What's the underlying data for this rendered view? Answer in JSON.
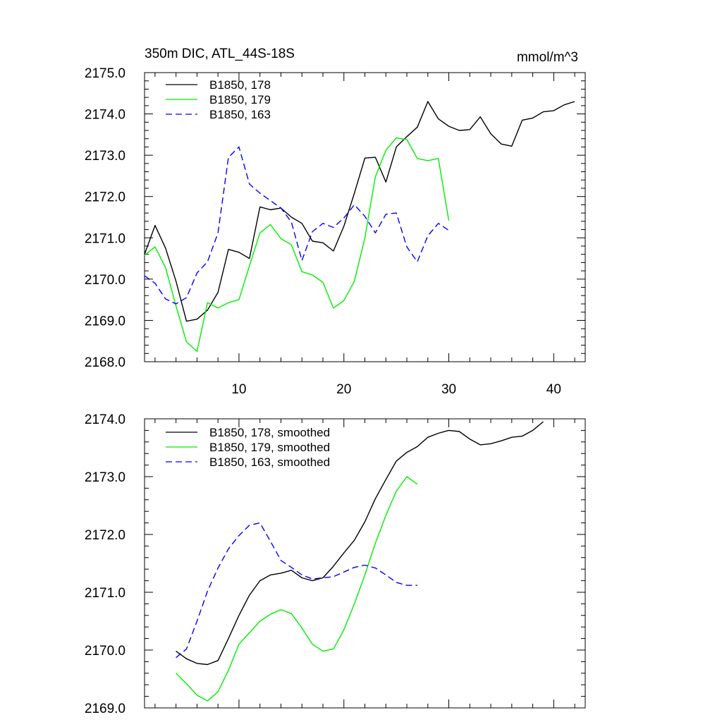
{
  "chart_data": [
    {
      "type": "line",
      "title_left": "350m DIC, ATL_44S-18S",
      "title_right": "mmol/m^3",
      "xlim": [
        1,
        43
      ],
      "ylim": [
        2168.0,
        2175.0
      ],
      "x_major_ticks": [
        10,
        20,
        30,
        40
      ],
      "x_tick_labels": [
        "10",
        "20",
        "30",
        "40"
      ],
      "y_major_ticks": [
        2168.0,
        2169.0,
        2170.0,
        2171.0,
        2172.0,
        2173.0,
        2174.0,
        2175.0
      ],
      "y_tick_labels": [
        "2168.0",
        "2169.0",
        "2170.0",
        "2171.0",
        "2172.0",
        "2173.0",
        "2174.0",
        "2175.0"
      ],
      "legend_position": "top-left",
      "series": [
        {
          "name": "B1850, 178",
          "color": "#000000",
          "dash": "solid",
          "x": [
            1,
            2,
            3,
            4,
            5,
            6,
            7,
            8,
            9,
            10,
            11,
            12,
            13,
            14,
            15,
            16,
            17,
            18,
            19,
            20,
            21,
            22,
            23,
            24,
            25,
            26,
            27,
            28,
            29,
            30,
            31,
            32,
            33,
            34,
            35,
            36,
            37,
            38,
            39,
            40,
            41,
            42
          ],
          "values": [
            2170.6,
            2171.3,
            2170.75,
            2169.95,
            2168.98,
            2169.03,
            2169.25,
            2169.68,
            2170.72,
            2170.65,
            2170.5,
            2171.75,
            2171.68,
            2171.72,
            2171.5,
            2171.35,
            2170.92,
            2170.88,
            2170.68,
            2171.28,
            2172.08,
            2172.93,
            2172.95,
            2172.35,
            2173.2,
            2173.45,
            2173.68,
            2174.3,
            2173.88,
            2173.7,
            2173.6,
            2173.62,
            2173.93,
            2173.52,
            2173.27,
            2173.22,
            2173.85,
            2173.9,
            2174.05,
            2174.08,
            2174.22,
            2174.3
          ]
        },
        {
          "name": "B1850, 179",
          "color": "#00ee00",
          "dash": "solid",
          "x": [
            1,
            2,
            3,
            4,
            5,
            6,
            7,
            8,
            9,
            10,
            11,
            12,
            13,
            14,
            15,
            16,
            17,
            18,
            19,
            20,
            21,
            22,
            23,
            24,
            25,
            26,
            27,
            28,
            29,
            30
          ],
          "values": [
            2170.58,
            2170.78,
            2170.28,
            2169.35,
            2168.48,
            2168.25,
            2169.43,
            2169.3,
            2169.43,
            2169.5,
            2170.32,
            2171.12,
            2171.32,
            2170.98,
            2170.83,
            2170.18,
            2170.1,
            2169.92,
            2169.3,
            2169.48,
            2169.95,
            2171.0,
            2172.48,
            2173.12,
            2173.42,
            2173.38,
            2172.92,
            2172.87,
            2172.92,
            2171.42
          ]
        },
        {
          "name": "B1850, 163",
          "color": "#0000ff",
          "dash": "dashed",
          "x": [
            1,
            2,
            3,
            4,
            5,
            6,
            7,
            8,
            9,
            10,
            11,
            12,
            13,
            14,
            15,
            16,
            17,
            18,
            19,
            20,
            21,
            22,
            23,
            24,
            25,
            26,
            27,
            28,
            29,
            30
          ],
          "values": [
            2170.08,
            2169.9,
            2169.52,
            2169.4,
            2169.55,
            2170.15,
            2170.42,
            2171.12,
            2172.95,
            2173.2,
            2172.3,
            2172.08,
            2171.9,
            2171.72,
            2171.38,
            2170.45,
            2171.15,
            2171.35,
            2171.25,
            2171.48,
            2171.8,
            2171.52,
            2171.12,
            2171.57,
            2171.6,
            2170.78,
            2170.42,
            2171.05,
            2171.35,
            2171.18
          ]
        }
      ]
    },
    {
      "type": "line",
      "xlim": [
        1,
        43
      ],
      "ylim": [
        2169.0,
        2174.0
      ],
      "x_major_ticks": [
        10,
        20,
        30,
        40
      ],
      "y_major_ticks": [
        2169.0,
        2170.0,
        2171.0,
        2172.0,
        2173.0,
        2174.0
      ],
      "y_tick_labels": [
        "2169.0",
        "2170.0",
        "2171.0",
        "2172.0",
        "2173.0",
        "2174.0"
      ],
      "legend_position": "top-left",
      "series": [
        {
          "name": "B1850, 178, smoothed",
          "color": "#000000",
          "dash": "solid",
          "x": [
            4,
            5,
            6,
            7,
            8,
            9,
            10,
            11,
            12,
            13,
            14,
            15,
            16,
            17,
            18,
            19,
            20,
            21,
            22,
            23,
            24,
            25,
            26,
            27,
            28,
            29,
            30,
            31,
            32,
            33,
            34,
            35,
            36,
            37,
            38,
            39
          ],
          "values": [
            2169.98,
            2169.85,
            2169.77,
            2169.75,
            2169.82,
            2170.2,
            2170.6,
            2170.95,
            2171.2,
            2171.3,
            2171.33,
            2171.38,
            2171.25,
            2171.2,
            2171.25,
            2171.45,
            2171.68,
            2171.9,
            2172.22,
            2172.62,
            2172.95,
            2173.27,
            2173.42,
            2173.52,
            2173.68,
            2173.75,
            2173.8,
            2173.78,
            2173.65,
            2173.55,
            2173.57,
            2173.62,
            2173.68,
            2173.7,
            2173.8,
            2173.95
          ]
        },
        {
          "name": "B1850, 179, smoothed",
          "color": "#00ee00",
          "dash": "solid",
          "x": [
            4,
            5,
            6,
            7,
            8,
            9,
            10,
            11,
            12,
            13,
            14,
            15,
            16,
            17,
            18,
            19,
            20,
            21,
            22,
            23,
            24,
            25,
            26,
            27
          ],
          "values": [
            2169.6,
            2169.42,
            2169.22,
            2169.12,
            2169.28,
            2169.65,
            2170.1,
            2170.3,
            2170.5,
            2170.62,
            2170.7,
            2170.63,
            2170.38,
            2170.1,
            2169.98,
            2170.02,
            2170.35,
            2170.8,
            2171.3,
            2171.85,
            2172.33,
            2172.75,
            2173.0,
            2172.87
          ]
        },
        {
          "name": "B1850, 163, smoothed",
          "color": "#0000ff",
          "dash": "dashed",
          "x": [
            4,
            5,
            6,
            7,
            8,
            9,
            10,
            11,
            12,
            13,
            14,
            15,
            16,
            17,
            18,
            19,
            20,
            21,
            22,
            23,
            24,
            25,
            26,
            27
          ],
          "values": [
            2169.87,
            2170.02,
            2170.5,
            2171.02,
            2171.42,
            2171.75,
            2171.98,
            2172.16,
            2172.2,
            2171.88,
            2171.55,
            2171.43,
            2171.3,
            2171.23,
            2171.25,
            2171.27,
            2171.35,
            2171.43,
            2171.47,
            2171.42,
            2171.3,
            2171.17,
            2171.12,
            2171.12
          ]
        }
      ]
    }
  ]
}
